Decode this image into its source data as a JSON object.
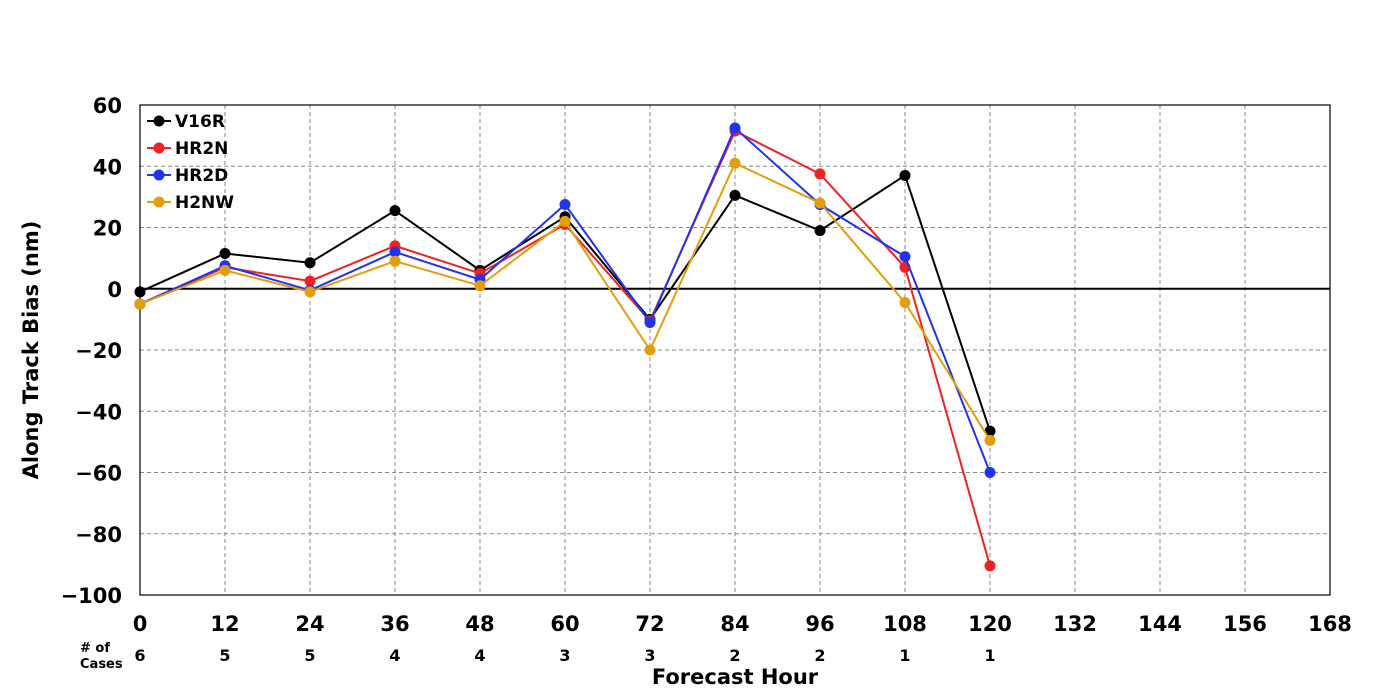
{
  "chart_data": {
    "type": "line",
    "xlabel": "Forecast Hour",
    "ylabel": "Along Track Bias (nm)",
    "xlim": [
      0,
      168
    ],
    "ylim": [
      -100,
      60
    ],
    "x_ticks": [
      0,
      12,
      24,
      36,
      48,
      60,
      72,
      84,
      96,
      108,
      120,
      132,
      144,
      156,
      168
    ],
    "y_ticks": [
      60,
      40,
      20,
      0,
      -20,
      -40,
      -60,
      -80,
      -100
    ],
    "grid": true,
    "zero_line": true,
    "legend_position": "top-left",
    "x": [
      0,
      12,
      24,
      36,
      48,
      60,
      72,
      84,
      96,
      108,
      120
    ],
    "series": [
      {
        "name": "V16R",
        "color": "#000000",
        "values": [
          -1,
          11.5,
          8.5,
          25.5,
          6,
          23.5,
          -10,
          30.5,
          19,
          37,
          -46.5
        ]
      },
      {
        "name": "HR2N",
        "color": "#ee2222",
        "values": [
          -5,
          7,
          2.5,
          14,
          5,
          21,
          -10.5,
          51.5,
          37.5,
          7,
          -90.5
        ]
      },
      {
        "name": "HR2D",
        "color": "#2233ee",
        "values": [
          -5,
          7.5,
          -0.5,
          12,
          3,
          27.5,
          -11,
          52.5,
          27.5,
          10.5,
          -60
        ]
      },
      {
        "name": "H2NW",
        "color": "#e39e0b",
        "values": [
          -5,
          6,
          -1,
          9,
          1,
          22,
          -20,
          41,
          28,
          -4.5,
          -49.5
        ]
      }
    ],
    "cases": {
      "label": "# of\nCases",
      "values": [
        6,
        5,
        5,
        4,
        4,
        3,
        3,
        2,
        2,
        1,
        1
      ]
    }
  }
}
